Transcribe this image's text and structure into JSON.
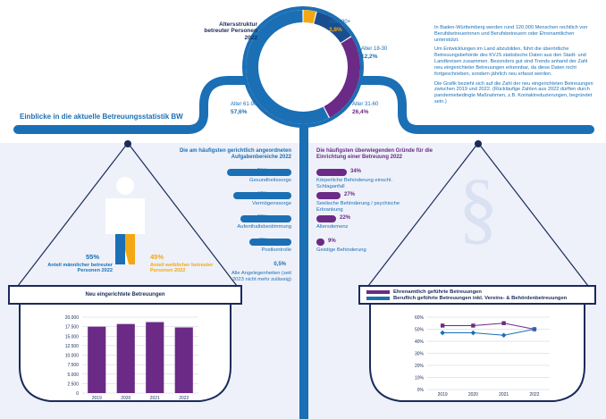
{
  "colors": {
    "blue": "#1b6fb5",
    "navy": "#1a2b5a",
    "purple": "#6b2a85",
    "orange": "#f3a712",
    "light_blue": "#4f9bd6",
    "pale_bg": "#eef1f9"
  },
  "header": {
    "section_title": "Einblicke in die aktuelle Betreuungsstatistik BW",
    "intro_paragraphs": [
      "In Baden-Württemberg werden rund 120.000 Menschen rechtlich von Berufsbetreuerinnen und Berufsbetreuern oder Ehrenamtlichen unterstützt.",
      "Um Entwicklungen im Land abzubilden, führt die überörtliche Betreuungsbehörde des KVJS statistische Daten aus den Stadt- und Landkreisen zusammen. Besonders gut sind Trends anhand der Zahl neu eingerichteter Betreuungen erkennbar, da diese Daten nicht fortgeschrieben, sondern jährlich neu erfasst werden.",
      "Die Grafik bezieht sich auf die Zahl der neu eingerichteten Betreuungen zwischen 2019 und 2022. (Rückläufige Zahlen aus 2022 dürften durch pandemiebedingte Maßnahmen, z.B. Kontaktreduzierungen, begründet sein.)"
    ]
  },
  "chart_data": [
    {
      "type": "pie",
      "title": "Altersstruktur betreuter Personen 2022",
      "slices": [
        {
          "label": "Alter 90+",
          "value": 3.8,
          "display": "3,8%",
          "color": "#f3a712"
        },
        {
          "label": "Alter 18-30",
          "value": 12.2,
          "display": "12,2%",
          "color": "#1b6fb5"
        },
        {
          "label": "Alter 31-60",
          "value": 26.4,
          "display": "26,4%",
          "color": "#6b2a85"
        },
        {
          "label": "Alter 61-90",
          "value": 57.6,
          "display": "57,6%",
          "color": "#1b6fb5"
        }
      ]
    },
    {
      "type": "bar",
      "title": "Die am häufigsten gerichtlich angeordneten Aufgabenbereiche 2022",
      "categories": [
        "Gesundheitssorge",
        "Vermögenssorge",
        "Aufenthaltsbestimmung",
        "Postkontrolle",
        "Alle Angelegenheiten (seit 2023 nicht mehr zulässig)"
      ],
      "values": [
        72,
        65,
        57,
        47,
        0.5
      ],
      "display": [
        "72%",
        "65%",
        "57%",
        "47%",
        "0,5%"
      ],
      "color": "#1b6fb5"
    },
    {
      "type": "bar",
      "title": "Die häufigsten überwiegenden Gründe für die Einrichtung einer Betreuung 2022",
      "categories": [
        "Körperliche Behinderung einschl. Schlaganfall",
        "Seelische Behinderung / psychische Erkrankung",
        "Altersdemenz",
        "Geistige Behinderung"
      ],
      "values": [
        34,
        27,
        22,
        9
      ],
      "display": [
        "34%",
        "27%",
        "22%",
        "9%"
      ],
      "color": "#6b2a85"
    },
    {
      "type": "pie",
      "title": "Anteil betreuter Personen 2022",
      "slices": [
        {
          "label": "Anteil männlicher betreuter Personen 2022",
          "value": 55,
          "display": "55%",
          "color": "#1b6fb5"
        },
        {
          "label": "Anteil weiblicher betreuter Personen 2022",
          "value": 45,
          "display": "45%",
          "color": "#f3a712"
        }
      ]
    },
    {
      "type": "bar",
      "title": "Neu eingerichtete Betreuungen",
      "categories": [
        "2019",
        "2020",
        "2021",
        "2022"
      ],
      "values": [
        17500,
        18200,
        18700,
        17300
      ],
      "ylim": [
        0,
        20000
      ],
      "yticks": [
        "0",
        "2.500",
        "5.000",
        "7.500",
        "10.000",
        "12.500",
        "15.000",
        "17.500",
        "20.000"
      ],
      "yticks_values": [
        0,
        2500,
        5000,
        7500,
        10000,
        12500,
        15000,
        17500,
        20000
      ],
      "color": "#6b2a85"
    },
    {
      "type": "line",
      "x": [
        "2019",
        "2020",
        "2021",
        "2022"
      ],
      "ylim": [
        0,
        60
      ],
      "yticks": [
        "0%",
        "10%",
        "20%",
        "30%",
        "40%",
        "50%",
        "60%"
      ],
      "yticks_values": [
        0,
        10,
        20,
        30,
        40,
        50,
        60
      ],
      "series": [
        {
          "name": "Ehrenamtlich geführte Betreuungen",
          "values": [
            53,
            53,
            55,
            50
          ],
          "color": "#6b2a85"
        },
        {
          "name": "Beruflich geführte Betreuungen inkl. Vereins- & Behördenbetreuungen",
          "values": [
            47,
            47,
            45,
            50
          ],
          "color": "#1b6fb5"
        }
      ]
    }
  ]
}
